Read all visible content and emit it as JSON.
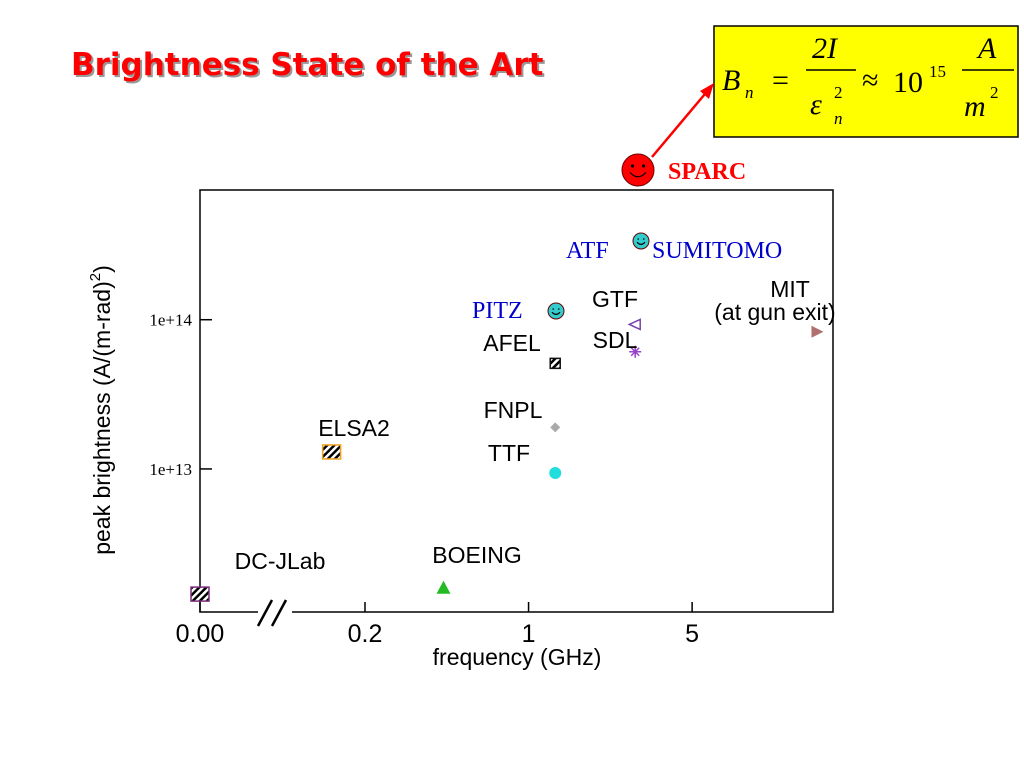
{
  "chart_data": {
    "type": "scatter",
    "title": "Brightness State of the Art",
    "formula": {
      "b": "B",
      "b_sub": "n",
      "eq": "=",
      "num": "2I",
      "den": "ε",
      "den_sup": "2",
      "den_sub": "n",
      "approx": "≈",
      "base": "10",
      "exp": "15",
      "unit_num": "A",
      "unit_den": "m",
      "unit_sup": "2"
    },
    "xlabel": "frequency (GHz)",
    "ylabel": "peak brightness (A/(m-rad)",
    "ylabel_sup": "2",
    "ylabel_end": ")",
    "xscale": "log",
    "x_break": true,
    "yscale": "log",
    "xlim": [
      0,
      20
    ],
    "ylim": [
      1100000000000.0,
      740000000000000.0
    ],
    "xticks": [
      {
        "value": 0,
        "label": "0.00"
      },
      0.2,
      1,
      5
    ],
    "yticks": [
      {
        "value": 10000000000000.0,
        "label": "1e+13"
      },
      {
        "value": 100000000000000.0,
        "label": "1e+14"
      }
    ],
    "series": [
      {
        "name": "DC-JLab",
        "color": "#7b2d7b",
        "marker": "hatched-square",
        "x": [
          0
        ],
        "values": [
          1450000000000.0
        ]
      },
      {
        "name": "BOEING",
        "color": "#22bb22",
        "marker": "triangle",
        "x": [
          0.433
        ],
        "values": [
          1600000000000.0
        ]
      },
      {
        "name": "ELSA2",
        "color": "#f0a020",
        "marker": "hatched-square",
        "x": [
          0.144
        ],
        "values": [
          13000000000000.0
        ]
      },
      {
        "name": "TTF",
        "color": "#22dddd",
        "marker": "circle",
        "x": [
          1.3
        ],
        "values": [
          9400000000000.0
        ]
      },
      {
        "name": "FNPL",
        "color": "#aaaaaa",
        "marker": "diamond",
        "x": [
          1.3
        ],
        "values": [
          19000000000000.0
        ]
      },
      {
        "name": "AFEL",
        "color": "#111111",
        "marker": "hatched-small",
        "x": [
          1.3
        ],
        "values": [
          51000000000000.0
        ]
      },
      {
        "name": "GTF",
        "color": "#7744aa",
        "marker": "triangle-left",
        "x": [
          2.856
        ],
        "values": [
          93000000000000.0
        ]
      },
      {
        "name": "SDL",
        "color": "#9944cc",
        "marker": "star",
        "x": [
          2.856
        ],
        "values": [
          61000000000000.0
        ]
      },
      {
        "name": "MIT",
        "note": "(at gun exit)",
        "color": "#b07070",
        "marker": "triangle-right",
        "x": [
          17
        ],
        "values": [
          83000000000000.0
        ]
      }
    ],
    "annotations": [
      {
        "text": "SPARC",
        "color": "#ff0000"
      },
      {
        "text": "ATF",
        "color": "#0000cc"
      },
      {
        "text": "SUMITOMO",
        "color": "#0000cc"
      },
      {
        "text": "PITZ",
        "color": "#0000cc"
      }
    ]
  }
}
